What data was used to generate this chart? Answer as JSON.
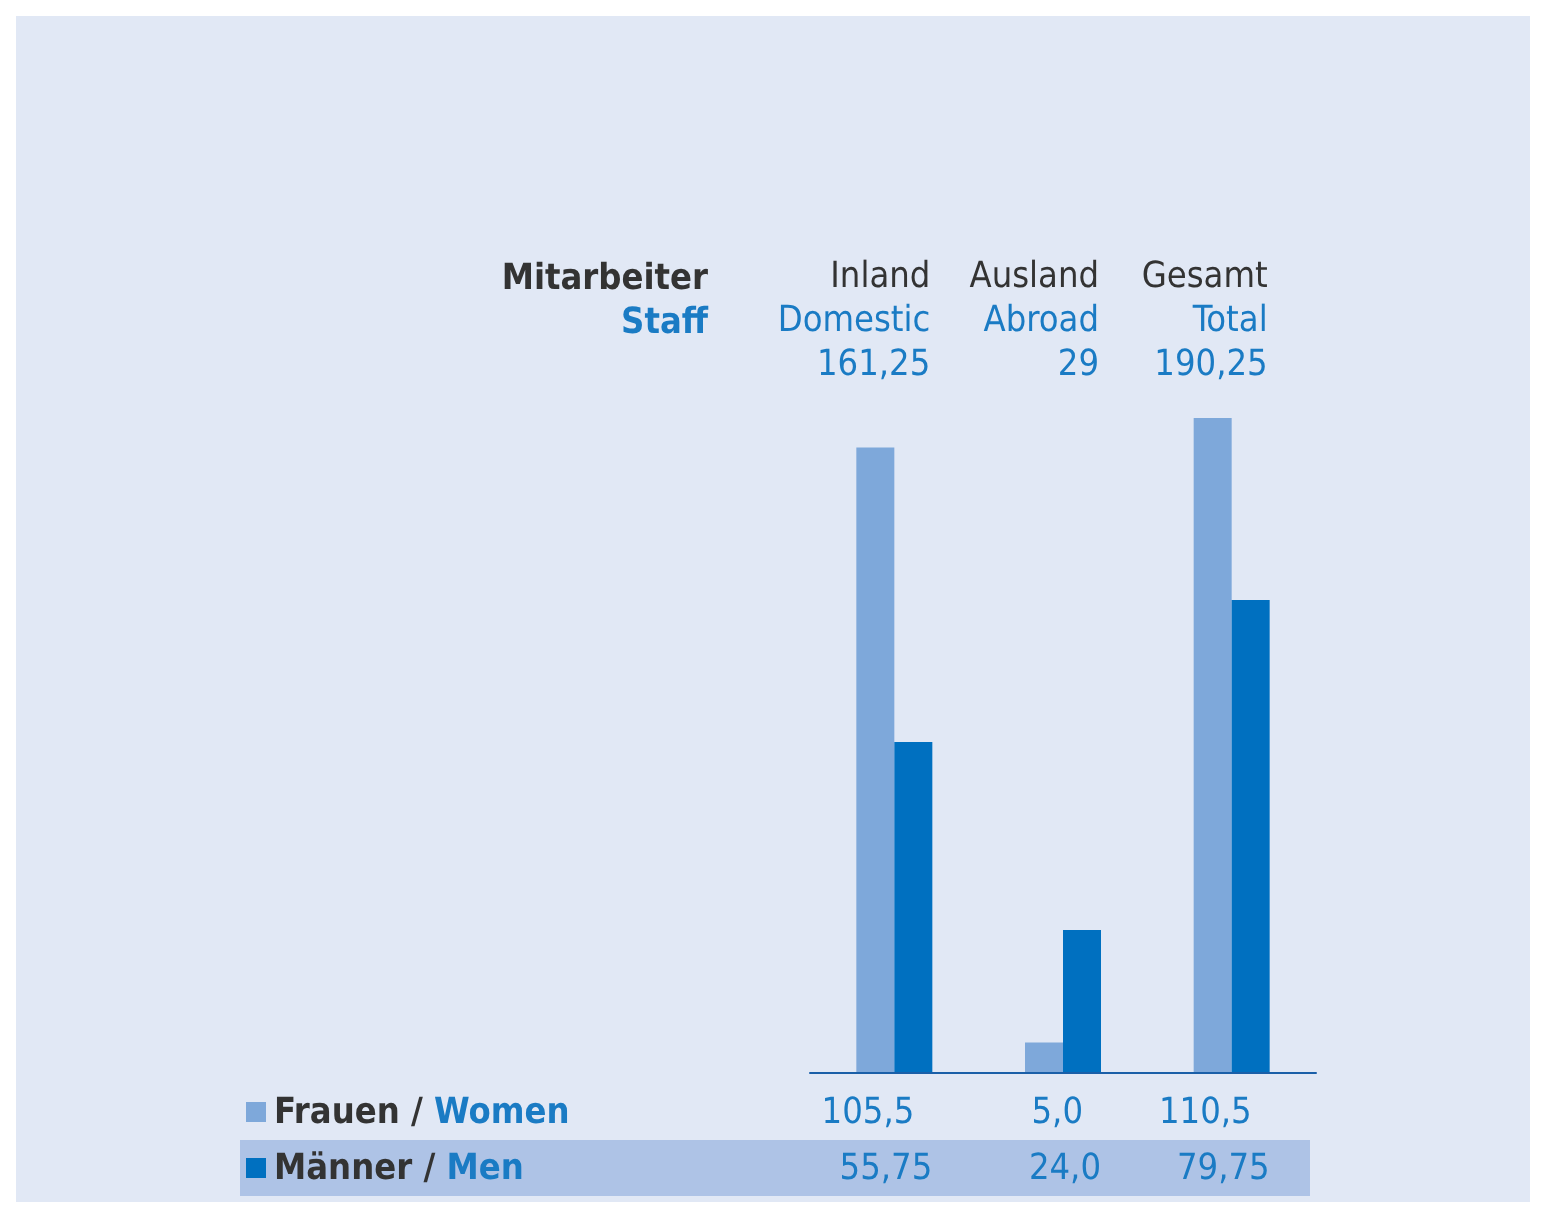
{
  "chart_data": {
    "type": "bar",
    "legend_title": "Mitarbeiter\nStaff",
    "categories": [
      "Inland\nDomestic\n161,25",
      "Ausland\nAbroad\n29",
      "Gesamt\nTotal\n190,25"
    ],
    "legend": "bottom left",
    "series": [
      {
        "name": "Frauen / Women",
        "color": "#7ea8da",
        "values": [
          105.5,
          5.0,
          110.5
        ],
        "value_labels": [
          "105,5",
          "5,0",
          "110,5"
        ]
      },
      {
        "name": "Männer / Men",
        "color": "#0070c0",
        "values": [
          55.75,
          24.0,
          79.75
        ],
        "value_labels": [
          "55,75",
          "24,0",
          "79,75"
        ]
      }
    ]
  }
}
